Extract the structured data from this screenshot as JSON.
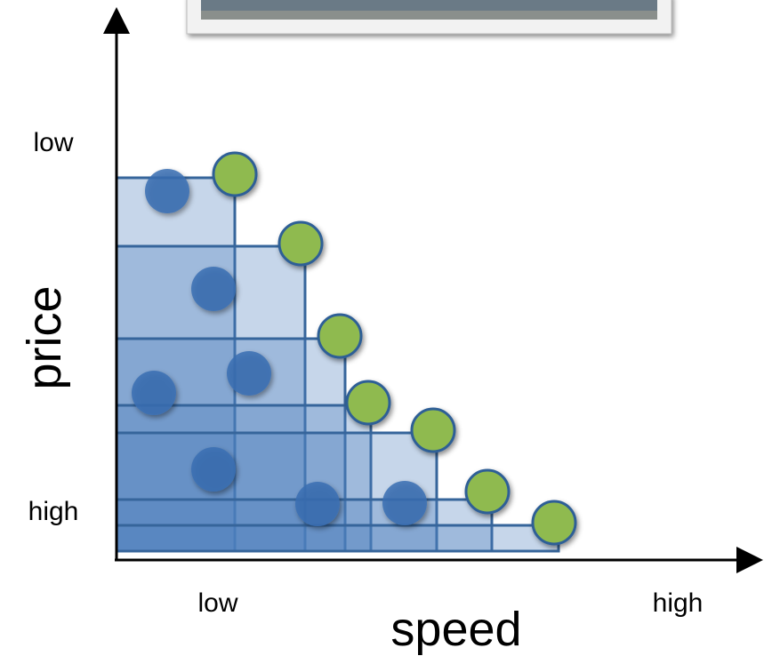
{
  "y_axis": {
    "label": "price",
    "top_label": "low",
    "bottom_label": "high"
  },
  "x_axis": {
    "label": "speed",
    "left_label": "low",
    "right_label": "high"
  }
}
